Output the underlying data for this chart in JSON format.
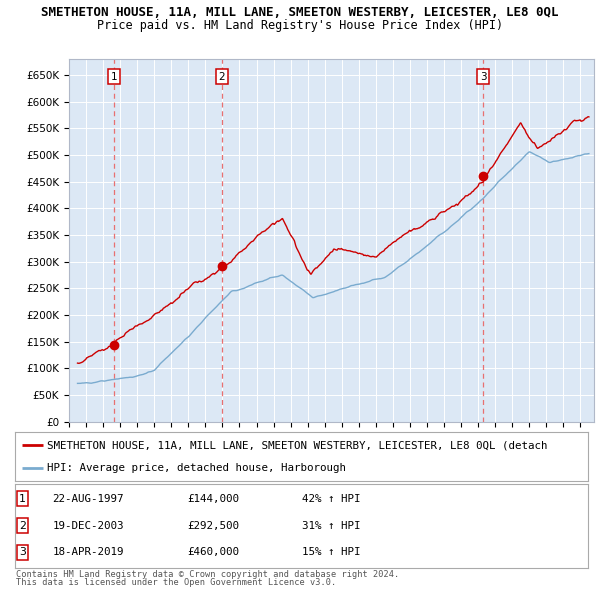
{
  "title": "SMETHETON HOUSE, 11A, MILL LANE, SMEETON WESTERBY, LEICESTER, LE8 0QL",
  "subtitle": "Price paid vs. HM Land Registry's House Price Index (HPI)",
  "ylim": [
    0,
    680000
  ],
  "yticks": [
    0,
    50000,
    100000,
    150000,
    200000,
    250000,
    300000,
    350000,
    400000,
    450000,
    500000,
    550000,
    600000,
    650000
  ],
  "ytick_labels": [
    "£0",
    "£50K",
    "£100K",
    "£150K",
    "£200K",
    "£250K",
    "£300K",
    "£350K",
    "£400K",
    "£450K",
    "£500K",
    "£550K",
    "£600K",
    "£650K"
  ],
  "transactions": [
    {
      "num": 1,
      "date_label": "22-AUG-1997",
      "year": 1997.64,
      "price": 144000,
      "pct": "42%",
      "direction": "↑"
    },
    {
      "num": 2,
      "date_label": "19-DEC-2003",
      "year": 2003.97,
      "price": 292500,
      "pct": "31%",
      "direction": "↑"
    },
    {
      "num": 3,
      "date_label": "18-APR-2019",
      "year": 2019.29,
      "price": 460000,
      "pct": "15%",
      "direction": "↑"
    }
  ],
  "legend_line1": "SMETHETON HOUSE, 11A, MILL LANE, SMEETON WESTERBY, LEICESTER, LE8 0QL (detach",
  "legend_line2": "HPI: Average price, detached house, Harborough",
  "footnote1": "Contains HM Land Registry data © Crown copyright and database right 2024.",
  "footnote2": "This data is licensed under the Open Government Licence v3.0.",
  "plot_bg_color": "#dce8f5",
  "red_line_color": "#cc0000",
  "blue_line_color": "#7aabcf",
  "dashed_color": "#e87070",
  "marker_color": "#cc0000",
  "grid_color": "#ffffff",
  "title_fontsize": 9.0,
  "subtitle_fontsize": 8.5,
  "tick_fontsize": 7.5,
  "legend_fontsize": 7.8
}
